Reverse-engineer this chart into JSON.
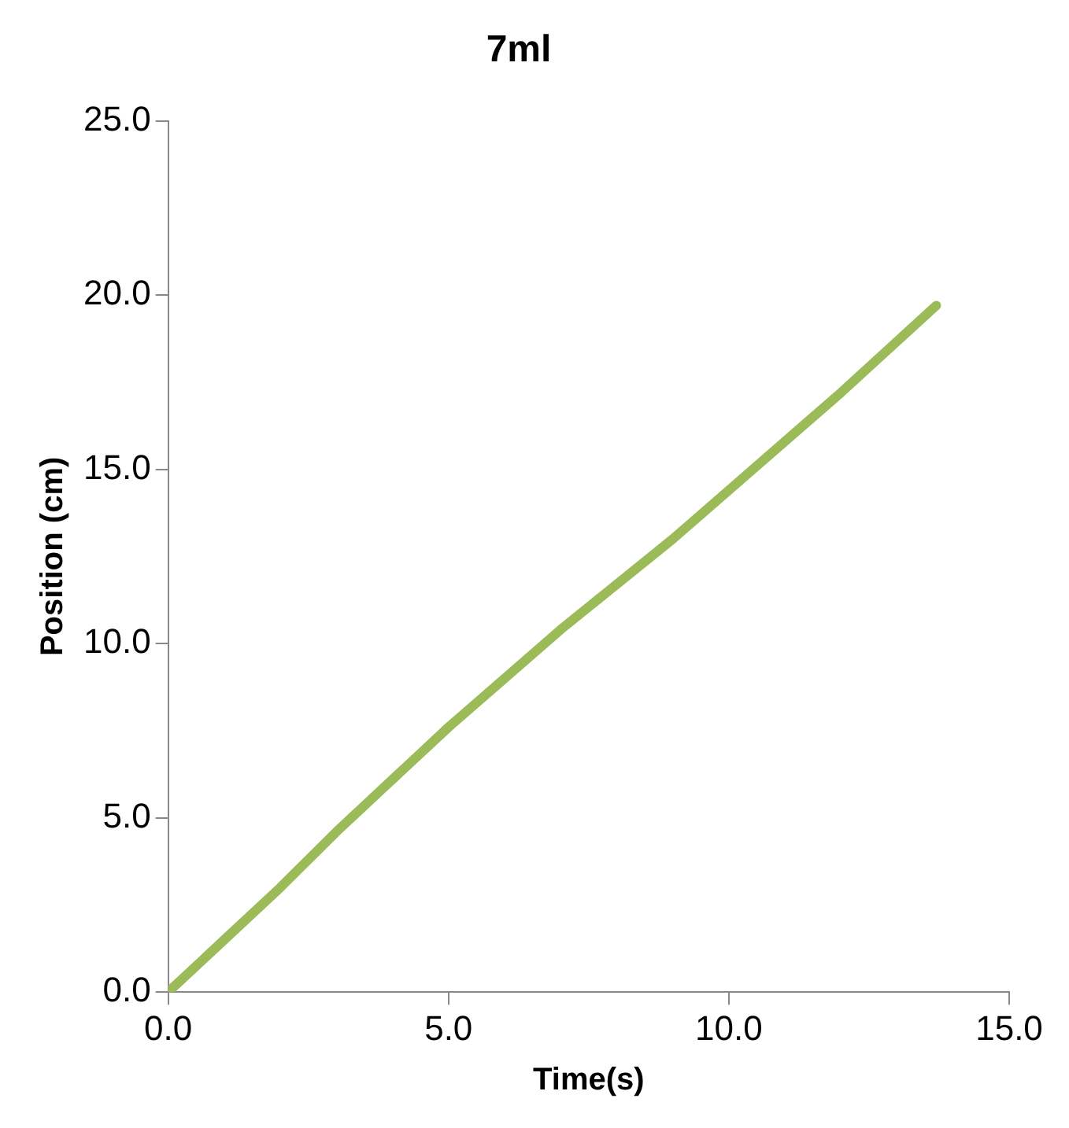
{
  "chart_data": {
    "type": "line",
    "title": "7ml",
    "xlabel": "Time(s)",
    "ylabel": "Position (cm)",
    "x": [
      0,
      1,
      2,
      3,
      3.8,
      5,
      7,
      9,
      10,
      12,
      13.7
    ],
    "series": [
      {
        "color": "#9bbb59",
        "values": [
          0,
          1.5,
          3.0,
          4.6,
          5.8,
          7.6,
          10.4,
          13.0,
          14.4,
          17.2,
          19.7
        ]
      }
    ],
    "xlim": [
      0,
      15
    ],
    "xticks": [
      {
        "value": 0,
        "label": "0.0"
      },
      {
        "value": 5,
        "label": "5.0"
      },
      {
        "value": 10,
        "label": "10.0"
      },
      {
        "value": 15,
        "label": "15.0"
      }
    ],
    "ylim": [
      0,
      25
    ],
    "yticks": [
      {
        "value": 0,
        "label": "0.0"
      },
      {
        "value": 5,
        "label": "5.0"
      },
      {
        "value": 10,
        "label": "10.0"
      },
      {
        "value": 15,
        "label": "15.0"
      },
      {
        "value": 20,
        "label": "20.0"
      },
      {
        "value": 25,
        "label": "25.0"
      }
    ],
    "grid": false,
    "legend": false,
    "marker": "none",
    "line_style": "solid"
  }
}
